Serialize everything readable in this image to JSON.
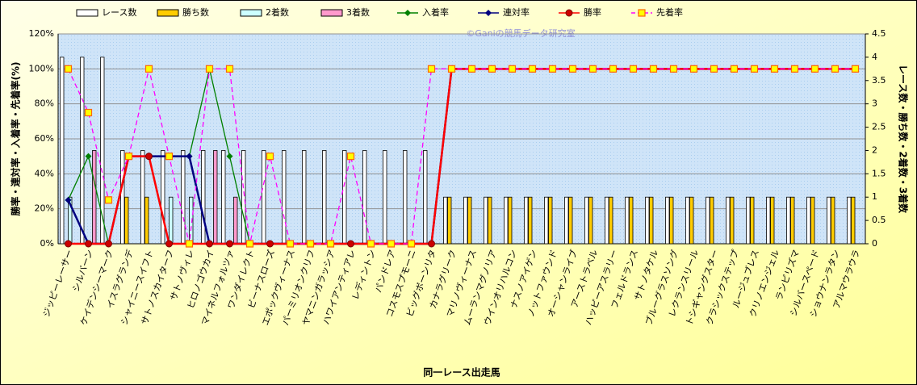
{
  "chart_data": {
    "type": "combo",
    "watermark": "©Ganiの競馬データ研究室",
    "ylabel": "勝率・連対率・入着率・先着率(%)",
    "y2label": "レース数・勝ち数・2着数・3着数",
    "xlabel": "同一レース出走馬",
    "categories": [
      "ジッピーレーサー",
      "シルバーン",
      "ケイデンシーマーク",
      "イスラグランデ",
      "シャイニースイフト",
      "サトノスカイターフ",
      "サトノヴィレ",
      "ヒロノゴウカイ",
      "マイネルフォルツァ",
      "ワンダイレクト",
      "ビーナスローズ",
      "エポックヴィーナス",
      "パーミリオンクリフ",
      "ヤマニンガラッシア",
      "ハワイアンティアレ",
      "レディントン",
      "パンドレア",
      "コスモスプモーニ",
      "ビッグボーンリタ",
      "カナラグリーク",
      "マリノヴィーナス",
      "ムーランマグノリア",
      "ウインオリハルコン",
      "ナスノアイゲン",
      "ノットファウンド",
      "オーシャンライブ",
      "アーストラベル",
      "ハッピーアスラリー",
      "フェルドランス",
      "サトノタケル",
      "ブルーグラスソング",
      "レクランスリール",
      "トシギャングスター",
      "クラシックステップ",
      "ルージュブレス",
      "クリノエンジェル",
      "ランピリズマ",
      "シルバースペード",
      "ショウナンラタン",
      "アルマウラウラ"
    ],
    "ylim": [
      0,
      120
    ],
    "yticks": [
      {
        "value": 0,
        "label": "0%"
      },
      {
        "value": 20,
        "label": "20%"
      },
      {
        "value": 40,
        "label": "40%"
      },
      {
        "value": 60,
        "label": "60%"
      },
      {
        "value": 80,
        "label": "80%"
      },
      {
        "value": 100,
        "label": "100%"
      },
      {
        "value": 120,
        "label": "120%"
      }
    ],
    "y2lim": [
      0,
      4.5
    ],
    "y2ticks": [
      0,
      0.5,
      1,
      1.5,
      2,
      2.5,
      3,
      3.5,
      4,
      4.5
    ],
    "grid": true,
    "series": [
      {
        "name": "レース数",
        "type": "bar",
        "axis": "y2",
        "color": "#ffffff",
        "values": [
          4,
          4,
          4,
          2,
          2,
          2,
          2,
          2,
          2,
          2,
          2,
          2,
          2,
          2,
          2,
          2,
          2,
          2,
          2,
          1,
          1,
          1,
          1,
          1,
          1,
          1,
          1,
          1,
          1,
          1,
          1,
          1,
          1,
          1,
          1,
          1,
          1,
          1,
          1,
          1
        ]
      },
      {
        "name": "勝ち数",
        "type": "bar",
        "axis": "y2",
        "color": "#ffcc00",
        "values": [
          0,
          0,
          0,
          1,
          1,
          0,
          0,
          0,
          0,
          0,
          0,
          0,
          0,
          0,
          0,
          0,
          0,
          0,
          0,
          1,
          1,
          1,
          1,
          1,
          1,
          1,
          1,
          1,
          1,
          1,
          1,
          1,
          1,
          1,
          1,
          1,
          1,
          1,
          1,
          1
        ]
      },
      {
        "name": "2着数",
        "type": "bar",
        "axis": "y2",
        "color": "#ccffff",
        "values": [
          1,
          0,
          0,
          0,
          0,
          1,
          1,
          0,
          0,
          0,
          0,
          0,
          0,
          0,
          0,
          0,
          0,
          0,
          0,
          0,
          0,
          0,
          0,
          0,
          0,
          0,
          0,
          0,
          0,
          0,
          0,
          0,
          0,
          0,
          0,
          0,
          0,
          0,
          0,
          0
        ]
      },
      {
        "name": "3着数",
        "type": "bar",
        "axis": "y2",
        "color": "#ff99cc",
        "values": [
          0,
          2,
          0,
          0,
          0,
          0,
          0,
          2,
          1,
          0,
          0,
          0,
          0,
          0,
          0,
          0,
          0,
          0,
          0,
          0,
          0,
          0,
          0,
          0,
          0,
          0,
          0,
          0,
          0,
          0,
          0,
          0,
          0,
          0,
          0,
          0,
          0,
          0,
          0,
          0
        ]
      },
      {
        "name": "入着率",
        "type": "line",
        "color": "#008000",
        "marker": "diamond",
        "values": [
          25,
          50,
          0,
          50,
          50,
          50,
          50,
          100,
          50,
          0,
          0,
          0,
          0,
          0,
          0,
          0,
          0,
          0,
          0,
          100,
          100,
          100,
          100,
          100,
          100,
          100,
          100,
          100,
          100,
          100,
          100,
          100,
          100,
          100,
          100,
          100,
          100,
          100,
          100,
          100
        ]
      },
      {
        "name": "連対率",
        "type": "line",
        "color": "#000080",
        "marker": "diamond",
        "values": [
          25,
          0,
          0,
          50,
          50,
          50,
          50,
          0,
          0,
          0,
          0,
          0,
          0,
          0,
          0,
          0,
          0,
          0,
          0,
          100,
          100,
          100,
          100,
          100,
          100,
          100,
          100,
          100,
          100,
          100,
          100,
          100,
          100,
          100,
          100,
          100,
          100,
          100,
          100,
          100
        ]
      },
      {
        "name": "勝率",
        "type": "line",
        "color": "#ff0000",
        "marker": "circle",
        "values": [
          0,
          0,
          0,
          50,
          50,
          0,
          0,
          0,
          0,
          0,
          0,
          0,
          0,
          0,
          0,
          0,
          0,
          0,
          0,
          100,
          100,
          100,
          100,
          100,
          100,
          100,
          100,
          100,
          100,
          100,
          100,
          100,
          100,
          100,
          100,
          100,
          100,
          100,
          100,
          100
        ]
      },
      {
        "name": "先着率",
        "type": "line",
        "color": "#ff00ff",
        "marker": "square",
        "dash": true,
        "values": [
          100,
          75,
          25,
          50,
          100,
          50,
          0,
          100,
          100,
          0,
          50,
          0,
          0,
          0,
          50,
          0,
          0,
          0,
          100,
          100,
          100,
          100,
          100,
          100,
          100,
          100,
          100,
          100,
          100,
          100,
          100,
          100,
          100,
          100,
          100,
          100,
          100,
          100,
          100,
          100
        ]
      }
    ]
  }
}
